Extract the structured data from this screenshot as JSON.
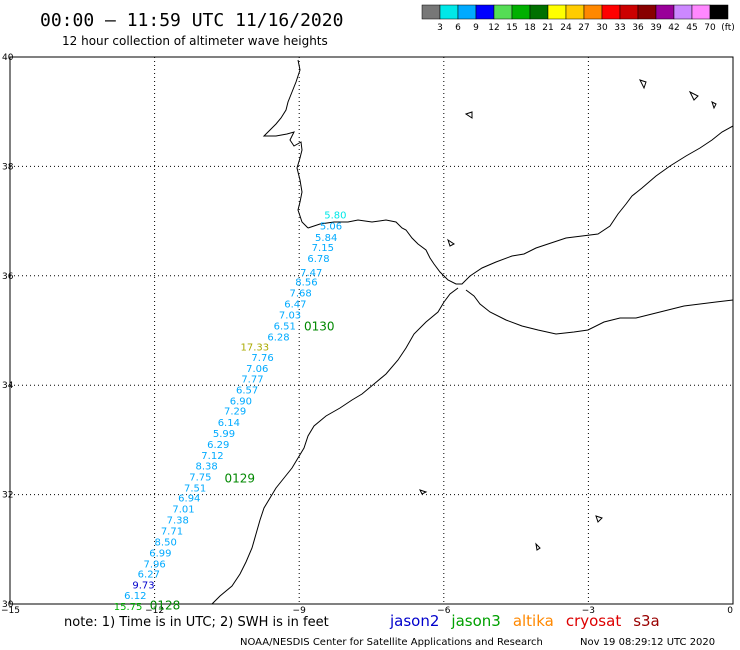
{
  "header": {
    "title": "00:00 – 11:59 UTC 11/16/2020",
    "subtitle": "12 hour collection of altimeter wave heights"
  },
  "color_scale": {
    "labels": [
      "3",
      "6",
      "9",
      "12",
      "15",
      "18",
      "21",
      "24",
      "27",
      "30",
      "33",
      "36",
      "39",
      "42",
      "45",
      "70",
      "(ft)"
    ],
    "colors": [
      "#777777",
      "#00e8e8",
      "#00aaff",
      "#0000ff",
      "#55dd55",
      "#00b000",
      "#007000",
      "#ffff00",
      "#ffcc00",
      "#ff8800",
      "#ff0000",
      "#cc0000",
      "#880000",
      "#990099",
      "#cc88ff",
      "#ff88ff",
      "#000000"
    ]
  },
  "axes": {
    "lat_labels": [
      "40",
      "38",
      "36",
      "34",
      "32",
      "30"
    ],
    "lon_labels": [
      "−15",
      "−12",
      "−9",
      "−6",
      "−3",
      "0"
    ],
    "lat_values": [
      40,
      38,
      36,
      34,
      32,
      30
    ],
    "lon_values": [
      -15,
      -12,
      -9,
      -6,
      -3,
      0
    ]
  },
  "swh_readings": [
    {
      "text": "5.80",
      "lon": -8.25,
      "lat": 37.05,
      "color": "#00e8e8"
    },
    {
      "text": "5.06",
      "lon": -8.34,
      "lat": 36.85,
      "color": "#00aaff"
    },
    {
      "text": "5.84",
      "lon": -8.44,
      "lat": 36.64,
      "color": "#00aaff"
    },
    {
      "text": "7.15",
      "lon": -8.51,
      "lat": 36.45,
      "color": "#00aaff"
    },
    {
      "text": "6.78",
      "lon": -8.6,
      "lat": 36.25,
      "color": "#00aaff"
    },
    {
      "text": "7.47",
      "lon": -8.75,
      "lat": 36.0,
      "color": "#00aaff"
    },
    {
      "text": "8.56",
      "lon": -8.85,
      "lat": 35.82,
      "color": "#00aaff"
    },
    {
      "text": "7.68",
      "lon": -8.97,
      "lat": 35.62,
      "color": "#00aaff"
    },
    {
      "text": "6.47",
      "lon": -9.08,
      "lat": 35.42,
      "color": "#00aaff"
    },
    {
      "text": "7.03",
      "lon": -9.19,
      "lat": 35.22,
      "color": "#00aaff"
    },
    {
      "text": "6.51",
      "lon": -9.3,
      "lat": 35.02,
      "color": "#00aaff"
    },
    {
      "text": "6.28",
      "lon": -9.43,
      "lat": 34.82,
      "color": "#00aaff"
    },
    {
      "text": "17.33",
      "lon": -9.92,
      "lat": 34.63,
      "color": "#aaaa00"
    },
    {
      "text": "7.76",
      "lon": -9.76,
      "lat": 34.44,
      "color": "#00aaff"
    },
    {
      "text": "7.06",
      "lon": -9.87,
      "lat": 34.24,
      "color": "#00aaff"
    },
    {
      "text": "7.77",
      "lon": -9.97,
      "lat": 34.05,
      "color": "#00aaff"
    },
    {
      "text": "6.57",
      "lon": -10.08,
      "lat": 33.85,
      "color": "#00aaff"
    },
    {
      "text": "6.90",
      "lon": -10.21,
      "lat": 33.65,
      "color": "#00aaff"
    },
    {
      "text": "7.29",
      "lon": -10.33,
      "lat": 33.46,
      "color": "#00aaff"
    },
    {
      "text": "6.14",
      "lon": -10.46,
      "lat": 33.25,
      "color": "#00aaff"
    },
    {
      "text": "5.99",
      "lon": -10.56,
      "lat": 33.05,
      "color": "#00aaff"
    },
    {
      "text": "6.29",
      "lon": -10.68,
      "lat": 32.85,
      "color": "#00aaff"
    },
    {
      "text": "7.12",
      "lon": -10.8,
      "lat": 32.65,
      "color": "#00aaff"
    },
    {
      "text": "8.38",
      "lon": -10.92,
      "lat": 32.46,
      "color": "#00aaff"
    },
    {
      "text": "7.75",
      "lon": -11.05,
      "lat": 32.26,
      "color": "#00aaff"
    },
    {
      "text": "7.51",
      "lon": -11.16,
      "lat": 32.06,
      "color": "#00aaff"
    },
    {
      "text": "6.94",
      "lon": -11.28,
      "lat": 31.87,
      "color": "#00aaff"
    },
    {
      "text": "7.01",
      "lon": -11.4,
      "lat": 31.67,
      "color": "#00aaff"
    },
    {
      "text": "7.38",
      "lon": -11.52,
      "lat": 31.47,
      "color": "#00aaff"
    },
    {
      "text": "7.71",
      "lon": -11.64,
      "lat": 31.27,
      "color": "#00aaff"
    },
    {
      "text": "8.50",
      "lon": -11.77,
      "lat": 31.07,
      "color": "#00aaff"
    },
    {
      "text": "6.99",
      "lon": -11.88,
      "lat": 30.87,
      "color": "#00aaff"
    },
    {
      "text": "7.96",
      "lon": -12.0,
      "lat": 30.67,
      "color": "#00aaff"
    },
    {
      "text": "6.27",
      "lon": -12.12,
      "lat": 30.48,
      "color": "#00aaff"
    },
    {
      "text": "9.73",
      "lon": -12.23,
      "lat": 30.28,
      "color": "#0000cc"
    },
    {
      "text": "6.12",
      "lon": -12.4,
      "lat": 30.09,
      "color": "#00aaff"
    },
    {
      "text": "15.75",
      "lon": -12.55,
      "lat": 29.89,
      "color": "#00b000"
    }
  ],
  "time_labels": [
    {
      "text": "0130",
      "lon": -8.9,
      "lat": 35.0,
      "color": "#008800"
    },
    {
      "text": "0129",
      "lon": -10.55,
      "lat": 32.22,
      "color": "#008800"
    },
    {
      "text": "0128",
      "lon": -12.1,
      "lat": 29.9,
      "color": "#008800"
    }
  ],
  "footer": {
    "note": "note: 1) Time is in UTC; 2) SWH is in feet",
    "satellites": [
      {
        "name": "jason2",
        "color": "#0000cc"
      },
      {
        "name": "jason3",
        "color": "#00a000"
      },
      {
        "name": "altika",
        "color": "#ff8800"
      },
      {
        "name": "cryosat",
        "color": "#dd0000"
      },
      {
        "name": "s3a",
        "color": "#990000"
      }
    ],
    "credit": "NOAA/NESDIS Center for Satellite Applications and Research",
    "timestamp": "Nov 19 08:29:12 UTC 2020"
  }
}
